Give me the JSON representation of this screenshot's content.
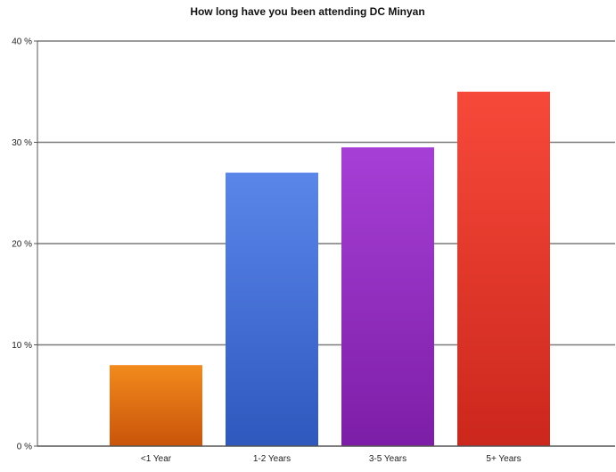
{
  "chart_data": {
    "type": "bar",
    "title": "How long have you been attending DC Minyan",
    "xlabel": "",
    "ylabel": "",
    "categories": [
      "<1 Year",
      "1-2 Years",
      "3-5 Years",
      "5+ Years"
    ],
    "values": [
      8,
      27,
      29.5,
      35
    ],
    "colors": [
      [
        "#f28a1c",
        "#c9540a"
      ],
      [
        "#5a86ea",
        "#2f58bd"
      ],
      [
        "#a63fd6",
        "#7d1ea7"
      ],
      [
        "#f7493a",
        "#cc271d"
      ]
    ],
    "ylim": [
      0,
      40
    ],
    "yticks": [
      {
        "value": 0,
        "label": "0 %"
      },
      {
        "value": 10,
        "label": "10 %"
      },
      {
        "value": 20,
        "label": "20 %"
      },
      {
        "value": 30,
        "label": "30 %"
      },
      {
        "value": 40,
        "label": "40 %"
      }
    ],
    "grid": true,
    "legend": "none"
  }
}
